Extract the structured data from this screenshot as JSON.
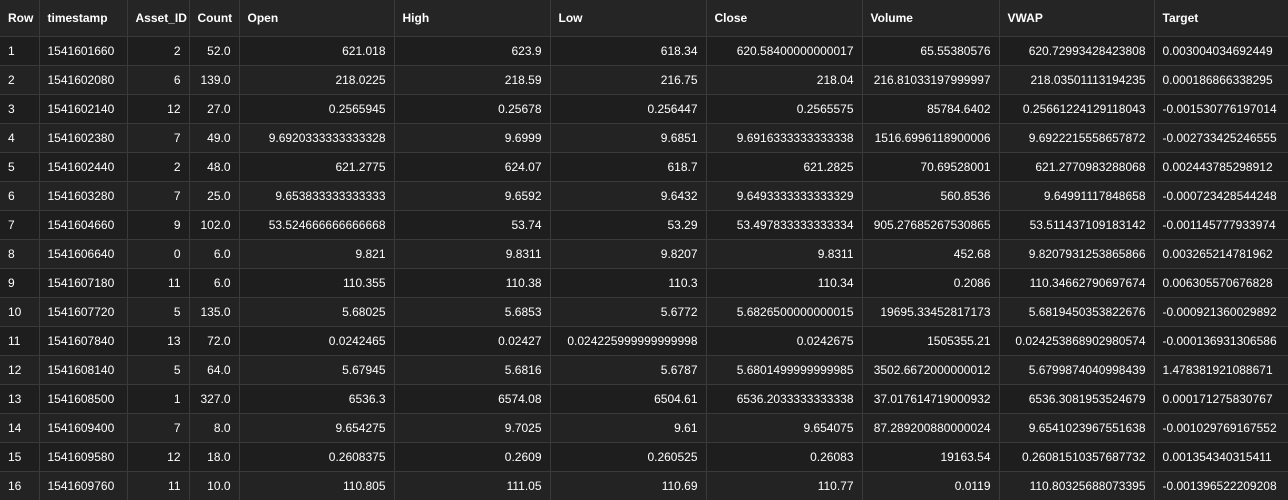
{
  "table": {
    "columns": [
      "Row",
      "timestamp",
      "Asset_ID",
      "Count",
      "Open",
      "High",
      "Low",
      "Close",
      "Volume",
      "VWAP",
      "Target"
    ],
    "rows": [
      [
        "1",
        "1541601660",
        "2",
        "52.0",
        "621.018",
        "623.9",
        "618.34",
        "620.58400000000017",
        "65.55380576",
        "620.72993428423808",
        "0.003004034692449"
      ],
      [
        "2",
        "1541602080",
        "6",
        "139.0",
        "218.0225",
        "218.59",
        "216.75",
        "218.04",
        "216.81033197999997",
        "218.03501113194235",
        "0.000186866338295"
      ],
      [
        "3",
        "1541602140",
        "12",
        "27.0",
        "0.2565945",
        "0.25678",
        "0.256447",
        "0.2565575",
        "85784.6402",
        "0.25661224129118043",
        "-0.001530776197014"
      ],
      [
        "4",
        "1541602380",
        "7",
        "49.0",
        "9.6920333333333328",
        "9.6999",
        "9.6851",
        "9.6916333333333338",
        "1516.6996118900006",
        "9.6922215558657872",
        "-0.002733425246555"
      ],
      [
        "5",
        "1541602440",
        "2",
        "48.0",
        "621.2775",
        "624.07",
        "618.7",
        "621.2825",
        "70.69528001",
        "621.2770983288068",
        "0.002443785298912"
      ],
      [
        "6",
        "1541603280",
        "7",
        "25.0",
        "9.653833333333333",
        "9.6592",
        "9.6432",
        "9.6493333333333329",
        "560.8536",
        "9.64991117848658",
        "-0.000723428544248"
      ],
      [
        "7",
        "1541604660",
        "9",
        "102.0",
        "53.524666666666668",
        "53.74",
        "53.29",
        "53.497833333333334",
        "905.27685267530865",
        "53.511437109183142",
        "-0.001145777933974"
      ],
      [
        "8",
        "1541606640",
        "0",
        "6.0",
        "9.821",
        "9.8311",
        "9.8207",
        "9.8311",
        "452.68",
        "9.8207931253865866",
        "0.003265214781962"
      ],
      [
        "9",
        "1541607180",
        "11",
        "6.0",
        "110.355",
        "110.38",
        "110.3",
        "110.34",
        "0.2086",
        "110.34662790697674",
        "0.006305570676828"
      ],
      [
        "10",
        "1541607720",
        "5",
        "135.0",
        "5.68025",
        "5.6853",
        "5.6772",
        "5.6826500000000015",
        "19695.33452817173",
        "5.6819450353822676",
        "-0.000921360029892"
      ],
      [
        "11",
        "1541607840",
        "13",
        "72.0",
        "0.0242465",
        "0.02427",
        "0.024225999999999998",
        "0.0242675",
        "1505355.21",
        "0.024253868902980574",
        "-0.000136931306586"
      ],
      [
        "12",
        "1541608140",
        "5",
        "64.0",
        "5.67945",
        "5.6816",
        "5.6787",
        "5.6801499999999985",
        "3502.6672000000012",
        "5.6799874040998439",
        "1.478381921088671"
      ],
      [
        "13",
        "1541608500",
        "1",
        "327.0",
        "6536.3",
        "6574.08",
        "6504.61",
        "6536.2033333333338",
        "37.017614719000932",
        "6536.3081953524679",
        "0.000171275830767"
      ],
      [
        "14",
        "1541609400",
        "7",
        "8.0",
        "9.654275",
        "9.7025",
        "9.61",
        "9.654075",
        "87.289200880000024",
        "9.6541023967551638",
        "-0.001029769167552"
      ],
      [
        "15",
        "1541609580",
        "12",
        "18.0",
        "0.2608375",
        "0.2609",
        "0.260525",
        "0.26083",
        "19163.54",
        "0.26081510357687732",
        "0.001354340315411"
      ],
      [
        "16",
        "1541609760",
        "11",
        "10.0",
        "110.805",
        "111.05",
        "110.69",
        "110.77",
        "0.0119",
        "110.80325688073395",
        "-0.001396522209208"
      ]
    ]
  }
}
